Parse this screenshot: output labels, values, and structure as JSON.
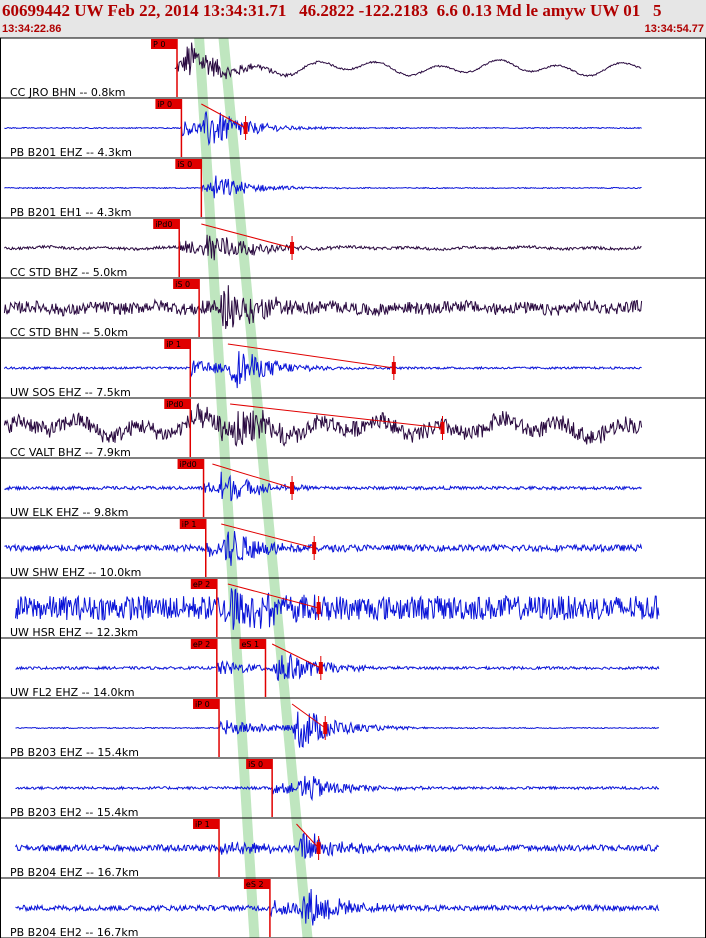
{
  "header": {
    "title": "60699442 UW Feb 22, 2014 13:34:31.71   46.2822 -122.2183  6.6 0.13 Md le amyw UW 01   5",
    "start_time": "13:34:22.86",
    "end_time": "13:34:54.77"
  },
  "colors": {
    "header_bg": "#e6e6e6",
    "header_text": "#b00000",
    "pick": "#e00000",
    "window": "#bfe6bf",
    "trace_dark": "#2a0a40",
    "trace_blue": "#0a14d8"
  },
  "chart_data": {
    "type": "seismogram",
    "time_range": [
      "13:34:22.86",
      "13:34:54.77"
    ],
    "traces": [
      {
        "label": "CC JRO BHN -- 0.8km",
        "color": "dark",
        "pick": "P 0",
        "pick_t": 8.0,
        "arrival_t": 8.2,
        "amp": 0.85,
        "noise": 0.03,
        "swell": 0.5
      },
      {
        "label": "PB B201 EHZ -- 4.3km",
        "color": "blue",
        "pick": "iP 0",
        "pick_t": 8.2,
        "arrival_t": 9.1,
        "amp": 0.9,
        "noise": 0.02,
        "swell": 0,
        "coda_end_t": 11.1
      },
      {
        "label": "PB B201 EH1 -- 4.3km",
        "color": "blue",
        "pick": "iS 0",
        "pick_t": 9.1,
        "arrival_t": 9.4,
        "amp": 0.55,
        "noise": 0.02,
        "swell": 0
      },
      {
        "label": "CC STD BHZ -- 5.0km",
        "color": "dark",
        "pick": "iPd0",
        "pick_t": 8.1,
        "arrival_t": 9.1,
        "amp": 0.8,
        "noise": 0.05,
        "swell": 0.08,
        "coda_end_t": 13.2
      },
      {
        "label": "CC STD BHN -- 5.0km",
        "color": "dark",
        "pick": "iS 0",
        "pick_t": 9.0,
        "arrival_t": 9.9,
        "amp": 0.95,
        "noise": 0.22,
        "swell": 0.15
      },
      {
        "label": "UW SOS EHZ -- 7.5km",
        "color": "blue",
        "pick": "iP 1",
        "pick_t": 8.6,
        "arrival_t": 10.3,
        "amp": 0.9,
        "noise": 0.04,
        "swell": 0,
        "coda_end_t": 17.8
      },
      {
        "label": "CC VALT BHZ -- 7.9km",
        "color": "dark",
        "pick": "iPd0",
        "pick_t": 8.6,
        "arrival_t": 10.4,
        "amp": 0.95,
        "noise": 0.3,
        "swell": 0.6,
        "coda_end_t": 20.0
      },
      {
        "label": "UW ELK EHZ -- 9.8km",
        "color": "blue",
        "pick": "iPd0",
        "pick_t": 9.2,
        "arrival_t": 9.6,
        "amp": 0.75,
        "noise": 0.06,
        "swell": 0,
        "coda_end_t": 13.2
      },
      {
        "label": "UW SHW EHZ -- 10.0km",
        "color": "blue",
        "pick": "iP 1",
        "pick_t": 9.3,
        "arrival_t": 10.0,
        "amp": 0.85,
        "noise": 0.12,
        "swell": 0,
        "coda_end_t": 14.2
      },
      {
        "label": "UW HSR EHZ -- 12.3km",
        "color": "blue",
        "pick": "eP 2",
        "pick_t": 9.8,
        "arrival_t": 10.3,
        "amp": 1.0,
        "noise": 0.45,
        "swell": 0,
        "coda_end_t": 14.4
      },
      {
        "label": "UW FL2 EHZ -- 14.0km",
        "color": "blue",
        "pick": "eP 2",
        "pick_t": 9.8,
        "arrival_t": 12.3,
        "amp": 0.8,
        "noise": 0.05,
        "swell": 0,
        "coda_end_t": 14.5
      },
      {
        "label": "PB B203 EHZ -- 15.4km",
        "color": "blue",
        "pick": "iP 0",
        "pick_t": 9.9,
        "arrival_t": 13.2,
        "amp": 0.95,
        "noise": 0.02,
        "swell": 0,
        "coda_end_t": 14.7
      },
      {
        "label": "PB B203 EH2 -- 15.4km",
        "color": "blue",
        "pick": "iS 0",
        "pick_t": 12.3,
        "arrival_t": 13.4,
        "amp": 0.65,
        "noise": 0.05,
        "swell": 0
      },
      {
        "label": "PB B204 EHZ -- 16.7km",
        "color": "blue",
        "pick": "iP 1",
        "pick_t": 9.9,
        "arrival_t": 13.4,
        "amp": 0.7,
        "noise": 0.12,
        "swell": 0,
        "coda_end_t": 14.4
      },
      {
        "label": "PB B204 EH2 -- 16.7km",
        "color": "blue",
        "pick": "eS 2",
        "pick_t": 12.2,
        "arrival_t": 13.5,
        "amp": 0.9,
        "noise": 0.1,
        "swell": 0
      }
    ],
    "extra_picks": [
      {
        "trace": 10,
        "label": "eS 1",
        "t": 12.0
      }
    ],
    "windows": [
      {
        "t_top": 9.0,
        "t_bottom": 11.5,
        "width_s": 0.45
      },
      {
        "t_top": 10.1,
        "t_bottom": 13.9,
        "width_s": 0.45
      }
    ]
  }
}
